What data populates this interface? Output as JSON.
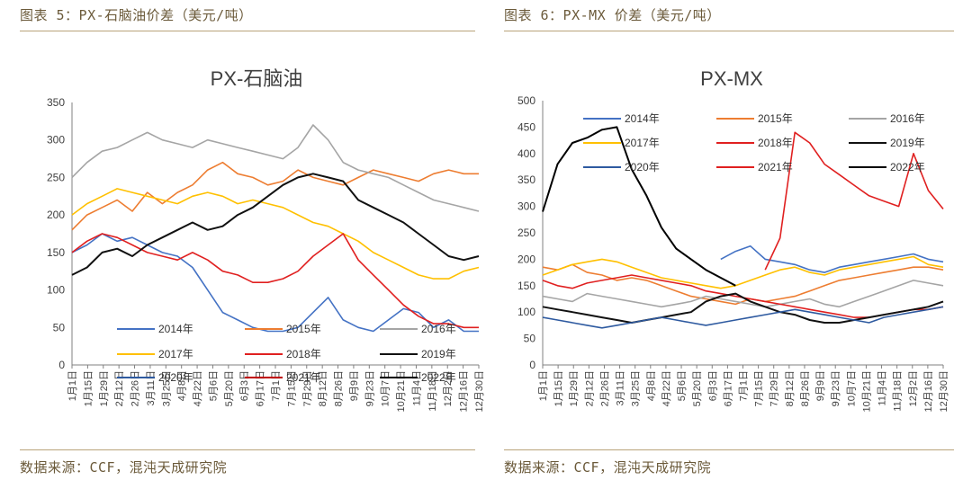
{
  "panels": [
    {
      "figure_title": "图表 5：PX-石脑油价差（美元/吨）",
      "source": "数据来源：CCF，混沌天成研究院"
    },
    {
      "figure_title": "图表 6：PX-MX 价差（美元/吨）",
      "source": "数据来源：CCF，混沌天成研究院"
    }
  ],
  "chart_data": [
    {
      "type": "line",
      "title": "PX-石脑油",
      "xlabel": "",
      "ylabel": "",
      "ylim": [
        0,
        350
      ],
      "yticks": [
        0,
        50,
        100,
        150,
        200,
        250,
        300,
        350
      ],
      "x_ticklabels": [
        "1月1日",
        "1月15日",
        "1月29日",
        "2月12日",
        "2月26日",
        "3月11日",
        "3月25日",
        "4月8日",
        "4月22日",
        "5月6日",
        "5月20日",
        "6月3日",
        "6月17日",
        "7月1日",
        "7月15日",
        "7月29日",
        "8月12日",
        "8月26日",
        "9月9日",
        "9月23日",
        "10月7日",
        "10月21日",
        "11月4日",
        "11月18日",
        "12月2日",
        "12月16日",
        "12月30日"
      ],
      "legend_position": "bottom",
      "series": [
        {
          "name": "2014年",
          "color": "#4472c4",
          "values": [
            150,
            160,
            175,
            165,
            170,
            160,
            150,
            145,
            130,
            100,
            70,
            60,
            50,
            45,
            45,
            50,
            70,
            90,
            60,
            50,
            45,
            60,
            75,
            70,
            50,
            60,
            45,
            45
          ]
        },
        {
          "name": "2015年",
          "color": "#ed7d31",
          "values": [
            180,
            200,
            210,
            220,
            205,
            230,
            215,
            230,
            240,
            260,
            270,
            255,
            250,
            240,
            245,
            260,
            250,
            245,
            240,
            250,
            260,
            255,
            250,
            245,
            255,
            260,
            255,
            255
          ]
        },
        {
          "name": "2016年",
          "color": "#a5a5a5",
          "values": [
            250,
            270,
            285,
            290,
            300,
            310,
            300,
            295,
            290,
            300,
            295,
            290,
            285,
            280,
            275,
            290,
            320,
            300,
            270,
            260,
            255,
            250,
            240,
            230,
            220,
            215,
            210,
            205
          ]
        },
        {
          "name": "2017年",
          "color": "#ffc000",
          "values": [
            200,
            215,
            225,
            235,
            230,
            225,
            220,
            215,
            225,
            230,
            225,
            215,
            220,
            215,
            210,
            200,
            190,
            185,
            175,
            165,
            150,
            140,
            130,
            120,
            115,
            115,
            125,
            130
          ]
        },
        {
          "name": "2018年",
          "color": "#e02020",
          "values": [
            150,
            165,
            175,
            170,
            160,
            150,
            145,
            140,
            150,
            140,
            125,
            120,
            110,
            110,
            115,
            125,
            145,
            160,
            175,
            140,
            120,
            100,
            80,
            65,
            55,
            55,
            50,
            50
          ]
        },
        {
          "name": "2019年",
          "color": "#111111",
          "values": [
            120,
            130,
            150,
            155,
            145,
            160,
            170,
            180,
            190,
            180,
            185,
            200,
            210,
            225,
            240,
            250,
            255,
            250,
            245,
            220,
            210,
            200,
            190,
            175,
            160,
            145,
            140,
            145
          ]
        },
        {
          "name": "2020年",
          "color": "#2e5aa0",
          "values": [],
          "dash": true
        },
        {
          "name": "2021年",
          "color": "#c00000",
          "values": [],
          "dash": true
        },
        {
          "name": "2022年",
          "color": "#000000",
          "values": [],
          "dash": true
        }
      ]
    },
    {
      "type": "line",
      "title": "PX-MX",
      "xlabel": "",
      "ylabel": "",
      "ylim": [
        0,
        500
      ],
      "yticks": [
        0,
        50,
        100,
        150,
        200,
        250,
        300,
        350,
        400,
        450,
        500
      ],
      "x_ticklabels": [
        "1月1日",
        "1月15日",
        "1月29日",
        "2月12日",
        "2月26日",
        "3月11日",
        "3月25日",
        "4月8日",
        "4月22日",
        "5月6日",
        "5月20日",
        "6月3日",
        "6月17日",
        "7月1日",
        "7月15日",
        "7月29日",
        "8月12日",
        "8月26日",
        "9月9日",
        "9月23日",
        "10月7日",
        "10月21日",
        "11月4日",
        "11月18日",
        "12月2日",
        "12月16日",
        "12月30日"
      ],
      "legend_position": "top",
      "series": [
        {
          "name": "2014年",
          "color": "#4472c4",
          "values": [
            null,
            null,
            null,
            null,
            null,
            null,
            null,
            null,
            null,
            null,
            null,
            null,
            200,
            215,
            225,
            200,
            195,
            190,
            180,
            175,
            185,
            190,
            195,
            200,
            205,
            210,
            200,
            195
          ]
        },
        {
          "name": "2015年",
          "color": "#ed7d31",
          "values": [
            185,
            180,
            190,
            175,
            170,
            160,
            165,
            160,
            150,
            140,
            130,
            125,
            120,
            115,
            125,
            120,
            125,
            130,
            140,
            150,
            160,
            165,
            170,
            175,
            180,
            185,
            185,
            180
          ]
        },
        {
          "name": "2016年",
          "color": "#a5a5a5",
          "values": [
            130,
            125,
            120,
            135,
            130,
            125,
            120,
            115,
            110,
            115,
            120,
            130,
            125,
            120,
            115,
            110,
            115,
            120,
            125,
            115,
            110,
            120,
            130,
            140,
            150,
            160,
            155,
            150
          ]
        },
        {
          "name": "2017年",
          "color": "#ffc000",
          "values": [
            170,
            180,
            190,
            195,
            200,
            195,
            185,
            175,
            165,
            160,
            155,
            150,
            145,
            150,
            160,
            170,
            180,
            185,
            175,
            170,
            180,
            185,
            190,
            195,
            200,
            205,
            190,
            185
          ]
        },
        {
          "name": "2018年",
          "color": "#e02020",
          "values": [
            160,
            150,
            145,
            155,
            160,
            165,
            170,
            165,
            160,
            155,
            150,
            140,
            135,
            130,
            125,
            120,
            115,
            110,
            105,
            100,
            95,
            90,
            90,
            95,
            100,
            105,
            105,
            110
          ]
        },
        {
          "name": "2019年",
          "color": "#111111",
          "values": [
            110,
            105,
            100,
            95,
            90,
            85,
            80,
            85,
            90,
            95,
            100,
            120,
            130,
            135,
            120,
            110,
            100,
            95,
            85,
            80,
            80,
            85,
            90,
            95,
            100,
            105,
            110,
            120
          ]
        },
        {
          "name": "2020年",
          "color": "#2e5aa0",
          "values": [
            90,
            85,
            80,
            75,
            70,
            75,
            80,
            85,
            90,
            85,
            80,
            75,
            80,
            85,
            90,
            95,
            100,
            105,
            100,
            95,
            90,
            85,
            80,
            90,
            95,
            100,
            105,
            110
          ]
        },
        {
          "name": "2021年",
          "color": "#e02020",
          "values": [
            null,
            null,
            null,
            null,
            null,
            null,
            null,
            null,
            null,
            null,
            null,
            null,
            null,
            null,
            null,
            180,
            240,
            440,
            420,
            380,
            360,
            340,
            320,
            310,
            300,
            400,
            330,
            295
          ]
        },
        {
          "name": "2022年",
          "color": "#000000",
          "values": [
            290,
            380,
            420,
            430,
            445,
            450,
            370,
            320,
            260,
            220,
            200,
            180,
            165,
            150
          ]
        }
      ]
    }
  ]
}
